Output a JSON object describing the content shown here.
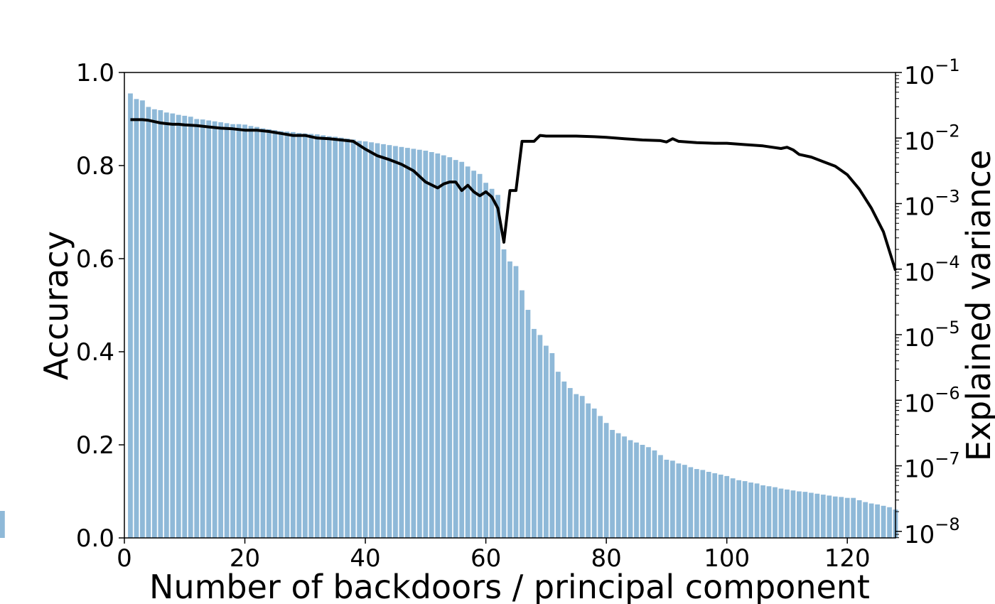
{
  "chart_data": {
    "type": "bar",
    "xlabel": "Number of backdoors / principal component",
    "ylabel": "Accuracy",
    "y2label": "Explained variance",
    "xlim": [
      0,
      128
    ],
    "ylim": [
      0,
      1.0
    ],
    "y2scale": "log",
    "y2lim_exponents": [
      -8.1,
      -1
    ],
    "xticks": [
      0,
      20,
      40,
      60,
      80,
      100,
      120
    ],
    "yticks": [
      "0.0",
      "0.2",
      "0.4",
      "0.6",
      "0.8",
      "1.0"
    ],
    "y2ticks": [
      {
        "base": "10",
        "exp": "−1",
        "value": -1
      },
      {
        "base": "10",
        "exp": "−2",
        "value": -2
      },
      {
        "base": "10",
        "exp": "−3",
        "value": -3
      },
      {
        "base": "10",
        "exp": "−4",
        "value": -4
      },
      {
        "base": "10",
        "exp": "−5",
        "value": -5
      },
      {
        "base": "10",
        "exp": "−6",
        "value": -6
      },
      {
        "base": "10",
        "exp": "−7",
        "value": -7
      },
      {
        "base": "10",
        "exp": "−8",
        "value": -8
      }
    ],
    "bar_color": "#8fb9d8",
    "line_color": "#000000",
    "bar_x": [
      1,
      2,
      3,
      4,
      5,
      6,
      7,
      8,
      9,
      10,
      11,
      12,
      13,
      14,
      15,
      16,
      17,
      18,
      19,
      20,
      21,
      22,
      23,
      24,
      25,
      26,
      27,
      28,
      29,
      30,
      31,
      32,
      33,
      34,
      35,
      36,
      37,
      38,
      39,
      40,
      41,
      42,
      43,
      44,
      45,
      46,
      47,
      48,
      49,
      50,
      51,
      52,
      53,
      54,
      55,
      56,
      57,
      58,
      59,
      60,
      61,
      62,
      63,
      64,
      65,
      66,
      67,
      68,
      69,
      70,
      71,
      72,
      73,
      74,
      75,
      76,
      77,
      78,
      79,
      80,
      81,
      82,
      83,
      84,
      85,
      86,
      87,
      88,
      89,
      90,
      91,
      92,
      93,
      94,
      95,
      96,
      97,
      98,
      99,
      100,
      101,
      102,
      103,
      104,
      105,
      106,
      107,
      108,
      109,
      110,
      111,
      112,
      113,
      114,
      115,
      116,
      117,
      118,
      119,
      120,
      121,
      122,
      123,
      124,
      125,
      126,
      127,
      128
    ],
    "bar_values": [
      0.955,
      0.943,
      0.94,
      0.926,
      0.921,
      0.919,
      0.914,
      0.912,
      0.909,
      0.907,
      0.905,
      0.9,
      0.899,
      0.897,
      0.895,
      0.893,
      0.891,
      0.889,
      0.889,
      0.888,
      0.885,
      0.883,
      0.88,
      0.878,
      0.876,
      0.874,
      0.873,
      0.872,
      0.87,
      0.869,
      0.868,
      0.867,
      0.865,
      0.863,
      0.862,
      0.86,
      0.858,
      0.856,
      0.853,
      0.852,
      0.85,
      0.848,
      0.846,
      0.844,
      0.842,
      0.84,
      0.838,
      0.836,
      0.834,
      0.832,
      0.829,
      0.826,
      0.822,
      0.818,
      0.812,
      0.808,
      0.798,
      0.789,
      0.782,
      0.763,
      0.75,
      0.737,
      0.62,
      0.594,
      0.584,
      0.532,
      0.49,
      0.449,
      0.436,
      0.413,
      0.397,
      0.357,
      0.336,
      0.322,
      0.309,
      0.305,
      0.289,
      0.278,
      0.262,
      0.247,
      0.232,
      0.225,
      0.218,
      0.21,
      0.205,
      0.2,
      0.195,
      0.188,
      0.178,
      0.168,
      0.166,
      0.16,
      0.157,
      0.152,
      0.148,
      0.146,
      0.142,
      0.139,
      0.136,
      0.133,
      0.128,
      0.124,
      0.122,
      0.119,
      0.117,
      0.113,
      0.111,
      0.109,
      0.106,
      0.104,
      0.102,
      0.1,
      0.099,
      0.097,
      0.095,
      0.093,
      0.091,
      0.089,
      0.088,
      0.086,
      0.086,
      0.081,
      0.077,
      0.074,
      0.072,
      0.069,
      0.066,
      0.061,
      0.058
    ],
    "line_x": [
      1,
      2,
      3,
      4,
      5,
      6,
      7,
      8,
      9,
      10,
      12,
      14,
      16,
      18,
      20,
      22,
      24,
      26,
      28,
      30,
      32,
      34,
      36,
      38,
      40,
      42,
      44,
      46,
      48,
      50,
      52,
      53,
      54,
      55,
      56,
      57,
      58,
      59,
      60,
      61,
      62,
      63,
      64,
      65,
      66,
      67,
      68,
      69,
      70,
      72,
      75,
      78,
      80,
      83,
      86,
      89,
      90,
      91,
      92,
      95,
      98,
      100,
      103,
      106,
      109,
      110,
      111,
      112,
      114,
      116,
      118,
      120,
      122,
      124,
      126,
      128
    ],
    "line_log10_values": [
      -1.72,
      -1.72,
      -1.72,
      -1.73,
      -1.75,
      -1.77,
      -1.78,
      -1.79,
      -1.79,
      -1.8,
      -1.81,
      -1.83,
      -1.85,
      -1.86,
      -1.88,
      -1.88,
      -1.9,
      -1.93,
      -1.96,
      -1.96,
      -2.0,
      -2.01,
      -2.03,
      -2.05,
      -2.17,
      -2.27,
      -2.33,
      -2.4,
      -2.5,
      -2.67,
      -2.76,
      -2.7,
      -2.67,
      -2.67,
      -2.8,
      -2.72,
      -2.82,
      -2.88,
      -2.82,
      -2.9,
      -3.07,
      -3.59,
      -2.8,
      -2.8,
      -2.05,
      -2.05,
      -2.05,
      -1.96,
      -1.97,
      -1.97,
      -1.97,
      -1.98,
      -1.99,
      -2.01,
      -2.03,
      -2.04,
      -2.06,
      -2.01,
      -2.05,
      -2.07,
      -2.08,
      -2.08,
      -2.1,
      -2.12,
      -2.16,
      -2.14,
      -2.18,
      -2.25,
      -2.29,
      -2.36,
      -2.43,
      -2.56,
      -2.78,
      -3.07,
      -3.43,
      -4.02
    ]
  }
}
